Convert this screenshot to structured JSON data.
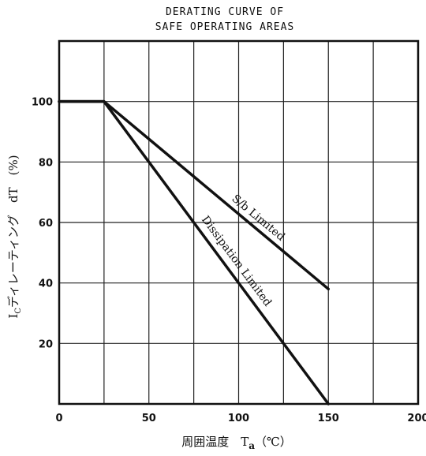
{
  "chart_data": {
    "type": "line",
    "title_lines": [
      "DERATING CURVE OF",
      "SAFE OPERATING AREAS"
    ],
    "xlabel": "周囲温度　T",
    "xlabel_sub": "a",
    "xlabel_unit": "（℃）",
    "ylabel": "I",
    "ylabel_sub": "C",
    "ylabel_rest": "ディレーティング　dT　(%)",
    "xlim": [
      0,
      200
    ],
    "ylim": [
      0,
      120
    ],
    "x_ticks": [
      0,
      50,
      100,
      150,
      200
    ],
    "x_tick_labels": [
      "0",
      "50",
      "100",
      "150",
      "200"
    ],
    "y_ticks": [
      20,
      40,
      60,
      80,
      100
    ],
    "y_tick_labels": [
      "20",
      "40",
      "60",
      "80",
      "100"
    ],
    "x_grid": [
      25,
      50,
      75,
      100,
      125,
      150,
      175
    ],
    "y_grid": [
      20,
      40,
      60,
      80,
      100
    ],
    "grid": true,
    "series": [
      {
        "name": "S/b Limited",
        "x": [
          0,
          25,
          150
        ],
        "y": [
          100,
          100,
          38
        ]
      },
      {
        "name": "Dissipation Limited",
        "x": [
          0,
          25,
          150
        ],
        "y": [
          100,
          100,
          0
        ]
      }
    ],
    "annotations": [
      {
        "text": "S/b Limited",
        "series": 0
      },
      {
        "text": "Dissipation Limited",
        "series": 1
      }
    ]
  }
}
